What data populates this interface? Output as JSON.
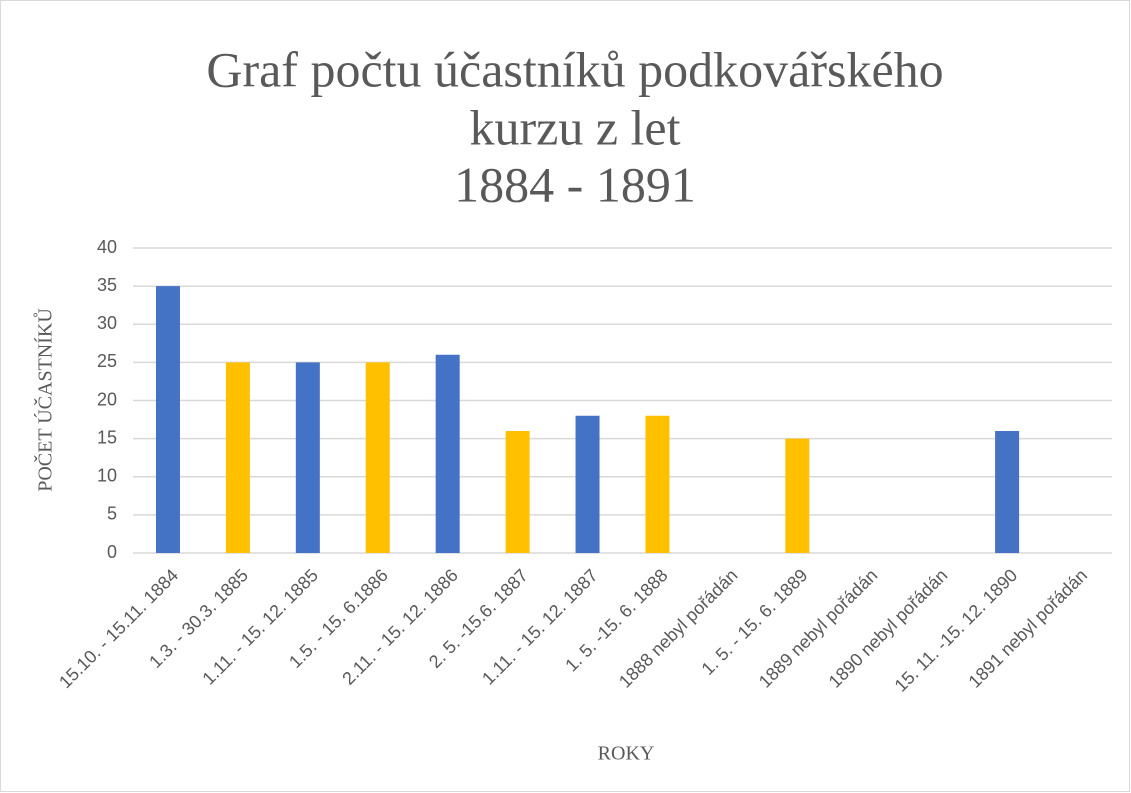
{
  "chart_data": {
    "type": "bar",
    "title": [
      "Graf počtu účastníků podkovářského",
      "kurzu z let",
      "1884 - 1891"
    ],
    "ylabel": "POČET  ÚČASTNÍKŮ",
    "xlabel": "ROKY",
    "categories": [
      "15.10. - 15.11. 1884",
      "1.3. - 30.3. 1885",
      "1.11. - 15. 12. 1885",
      "1.5. - 15. 6.1886",
      "2.11. - 15. 12. 1886",
      "2. 5. -15.6. 1887",
      "1.11. - 15. 12. 1887",
      "1. 5. -15. 6. 1888",
      "1888 nebyl pořádán",
      "1. 5. - 15. 6. 1889",
      "1889 nebyl pořádán",
      "1890 nebyl pořádán",
      "15. 11. -15. 12. 1890",
      "1891 nebyl pořádán"
    ],
    "values": [
      35,
      25,
      25,
      25,
      26,
      16,
      18,
      18,
      0,
      15,
      0,
      0,
      16,
      0
    ],
    "colors": [
      "#4472c4",
      "#ffc000",
      "#4472c4",
      "#ffc000",
      "#4472c4",
      "#ffc000",
      "#4472c4",
      "#ffc000",
      "#4472c4",
      "#ffc000",
      "#4472c4",
      "#ffc000",
      "#4472c4",
      "#ffc000"
    ],
    "ylim": [
      0,
      40
    ],
    "yticks": [
      0,
      5,
      10,
      15,
      20,
      25,
      30,
      35,
      40
    ],
    "grid": true
  }
}
